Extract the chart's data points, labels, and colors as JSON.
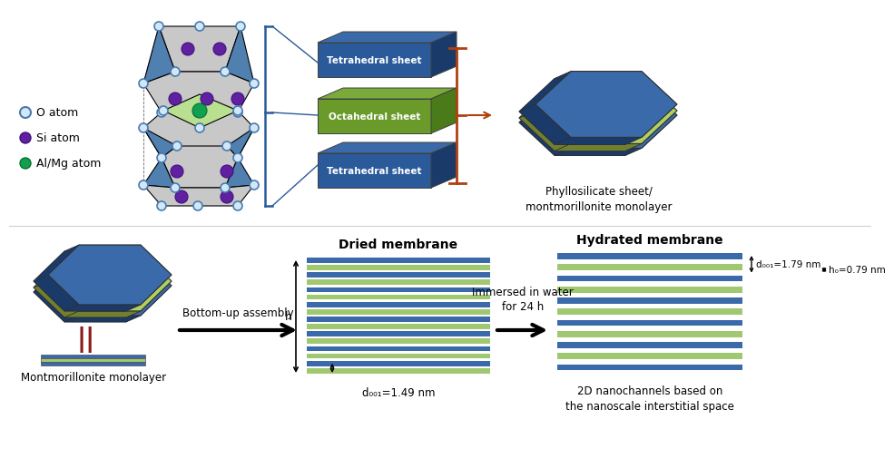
{
  "bg_color": "#ffffff",
  "blue_face": "#2a5a9a",
  "blue_dark": "#1a3a6a",
  "blue_mid": "#3a6aaa",
  "green_face": "#6a9a2a",
  "green_dark": "#4a7a1a",
  "green_light": "#90c060",
  "layer_blue": "#3a6aaa",
  "layer_green": "#a0c870",
  "o_atom_face": "#d0e8f8",
  "o_atom_edge": "#4a7ab0",
  "si_atom_face": "#6020a0",
  "si_atom_edge": "#401080",
  "almg_atom_face": "#10a050",
  "almg_atom_edge": "#087030",
  "bracket_blue": "#2a5a9a",
  "bracket_orange": "#b04010",
  "crystal_gray": "#c8c8c8",
  "crystal_blue": "#5080b0",
  "legend": {
    "o_label": "O atom",
    "si_label": "Si atom",
    "almg_label": "Al/Mg atom"
  },
  "sheet_labels": [
    "Tetrahedral sheet",
    "Octahedral sheet",
    "Tetrahedral sheet"
  ],
  "phyllo_label": "Phyllosilicate sheet/\nmontmorillonite monolayer",
  "dried_label": "Dried membrane",
  "hydrated_label": "Hydrated membrane",
  "monolayer_label": "Montmorillonite monolayer",
  "assembly_label": "Bottom-up assembly",
  "immersed_label": "Immersed in water\nfor 24 h",
  "nanochannel_label": "2D nanochannels based on\nthe nanoscale interstitial space",
  "h_label": "h",
  "dried_d_label": "d₀₀₁=1.49 nm",
  "hydrated_d_label": "d₀₀₁=1.79 nm",
  "h0_label": "h₀=0.79 nm"
}
